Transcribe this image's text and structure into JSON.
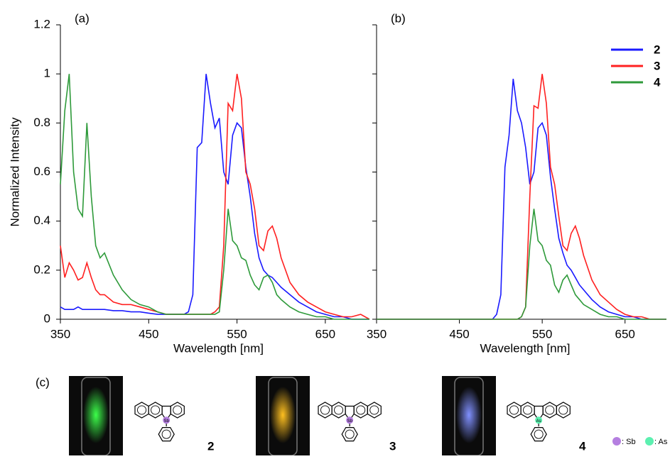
{
  "chart_data": [
    {
      "type": "line",
      "label": "(a)",
      "ylabel": "Normalized Intensity",
      "xlabel": "Wavelength [nm]",
      "xlim": [
        350,
        700
      ],
      "xticks": [
        350,
        450,
        550,
        650
      ],
      "ylim": [
        0,
        1.2
      ],
      "yticks": [
        0,
        0.2,
        0.4,
        0.6,
        0.8,
        1,
        1.2
      ],
      "ytick_labels": true,
      "legend": false,
      "x": [
        350,
        355,
        360,
        365,
        370,
        375,
        380,
        385,
        390,
        395,
        400,
        410,
        420,
        430,
        440,
        450,
        460,
        470,
        480,
        490,
        495,
        500,
        505,
        510,
        515,
        520,
        525,
        530,
        535,
        540,
        545,
        550,
        555,
        560,
        565,
        570,
        575,
        580,
        585,
        590,
        595,
        600,
        610,
        620,
        630,
        640,
        650,
        660,
        670,
        680,
        690,
        700
      ],
      "series": [
        {
          "name": "2",
          "color": "#1a1aff",
          "values": [
            0.05,
            0.04,
            0.04,
            0.04,
            0.05,
            0.04,
            0.04,
            0.04,
            0.04,
            0.04,
            0.04,
            0.035,
            0.035,
            0.03,
            0.03,
            0.025,
            0.02,
            0.02,
            0.02,
            0.02,
            0.03,
            0.1,
            0.7,
            0.72,
            1.0,
            0.88,
            0.78,
            0.82,
            0.6,
            0.55,
            0.75,
            0.8,
            0.78,
            0.62,
            0.5,
            0.35,
            0.25,
            0.2,
            0.18,
            0.17,
            0.15,
            0.13,
            0.1,
            0.07,
            0.05,
            0.03,
            0.02,
            0.01,
            0.01,
            0,
            0,
            0
          ]
        },
        {
          "name": "3",
          "color": "#ff2020",
          "values": [
            0.3,
            0.17,
            0.23,
            0.2,
            0.16,
            0.17,
            0.23,
            0.17,
            0.12,
            0.1,
            0.1,
            0.07,
            0.06,
            0.06,
            0.05,
            0.04,
            0.03,
            0.02,
            0.02,
            0.02,
            0.02,
            0.02,
            0.02,
            0.02,
            0.02,
            0.02,
            0.03,
            0.05,
            0.3,
            0.88,
            0.85,
            1.0,
            0.9,
            0.6,
            0.55,
            0.45,
            0.3,
            0.28,
            0.36,
            0.38,
            0.33,
            0.25,
            0.15,
            0.1,
            0.07,
            0.05,
            0.03,
            0.02,
            0.01,
            0.01,
            0.02,
            0
          ]
        },
        {
          "name": "4",
          "color": "#2e9a3a",
          "values": [
            0.55,
            0.85,
            1.0,
            0.6,
            0.45,
            0.42,
            0.8,
            0.5,
            0.3,
            0.25,
            0.27,
            0.18,
            0.12,
            0.08,
            0.06,
            0.05,
            0.03,
            0.02,
            0.02,
            0.02,
            0.02,
            0.02,
            0.02,
            0.02,
            0.02,
            0.02,
            0.02,
            0.03,
            0.2,
            0.45,
            0.32,
            0.3,
            0.25,
            0.24,
            0.18,
            0.14,
            0.12,
            0.17,
            0.18,
            0.15,
            0.1,
            0.08,
            0.05,
            0.03,
            0.02,
            0.01,
            0.01,
            0,
            0,
            0,
            0,
            0
          ]
        }
      ]
    },
    {
      "type": "line",
      "label": "(b)",
      "xlabel": "Wavelength [nm]",
      "xlim": [
        350,
        700
      ],
      "xticks": [
        350,
        450,
        550,
        650
      ],
      "ylim": [
        0,
        1.2
      ],
      "yticks": [
        0,
        0.2,
        0.4,
        0.6,
        0.8,
        1,
        1.2
      ],
      "ytick_labels": false,
      "legend": "top-right",
      "x": [
        350,
        355,
        360,
        365,
        370,
        375,
        380,
        385,
        390,
        395,
        400,
        410,
        420,
        430,
        440,
        450,
        460,
        470,
        480,
        490,
        495,
        500,
        505,
        510,
        515,
        520,
        525,
        530,
        535,
        540,
        545,
        550,
        555,
        560,
        565,
        570,
        575,
        580,
        585,
        590,
        595,
        600,
        610,
        620,
        630,
        640,
        650,
        660,
        670,
        680,
        690,
        700
      ],
      "series": [
        {
          "name": "2",
          "color": "#1a1aff",
          "values": [
            0,
            0,
            0,
            0,
            0,
            0,
            0,
            0,
            0,
            0,
            0,
            0,
            0,
            0,
            0,
            0,
            0,
            0,
            0,
            0,
            0.02,
            0.1,
            0.62,
            0.75,
            0.98,
            0.85,
            0.8,
            0.7,
            0.55,
            0.6,
            0.78,
            0.8,
            0.75,
            0.58,
            0.45,
            0.33,
            0.27,
            0.22,
            0.2,
            0.17,
            0.14,
            0.12,
            0.08,
            0.05,
            0.03,
            0.02,
            0.01,
            0.01,
            0,
            0,
            0,
            0
          ]
        },
        {
          "name": "3",
          "color": "#ff2020",
          "values": [
            0,
            0,
            0,
            0,
            0,
            0,
            0,
            0,
            0,
            0,
            0,
            0,
            0,
            0,
            0,
            0,
            0,
            0,
            0,
            0,
            0,
            0,
            0,
            0,
            0,
            0,
            0.01,
            0.05,
            0.5,
            0.87,
            0.86,
            1.0,
            0.88,
            0.62,
            0.55,
            0.42,
            0.3,
            0.28,
            0.35,
            0.38,
            0.33,
            0.26,
            0.16,
            0.1,
            0.07,
            0.04,
            0.02,
            0.01,
            0.01,
            0,
            0,
            0
          ]
        },
        {
          "name": "4",
          "color": "#2e9a3a",
          "values": [
            0,
            0,
            0,
            0,
            0,
            0,
            0,
            0,
            0,
            0,
            0,
            0,
            0,
            0,
            0,
            0,
            0,
            0,
            0,
            0,
            0,
            0,
            0,
            0,
            0,
            0,
            0.01,
            0.05,
            0.3,
            0.45,
            0.32,
            0.3,
            0.24,
            0.22,
            0.14,
            0.11,
            0.16,
            0.18,
            0.14,
            0.1,
            0.08,
            0.06,
            0.04,
            0.02,
            0.01,
            0.01,
            0,
            0,
            0,
            0,
            0,
            0
          ]
        }
      ]
    }
  ],
  "panel_c": {
    "label": "(c)",
    "compounds": [
      {
        "number": "2",
        "atom": "Sb",
        "atom_color": "#b57fe0",
        "glow": "#3cff4a"
      },
      {
        "number": "3",
        "atom": "Sb",
        "atom_color": "#b57fe0",
        "glow": "#ffc020"
      },
      {
        "number": "4",
        "atom": "As",
        "atom_color": "#5cf0b0",
        "glow": "#8090ff"
      }
    ],
    "legend": [
      {
        "text": ": Sb",
        "color": "#b57fe0"
      },
      {
        "text": ": As",
        "color": "#5cf0b0"
      }
    ]
  }
}
